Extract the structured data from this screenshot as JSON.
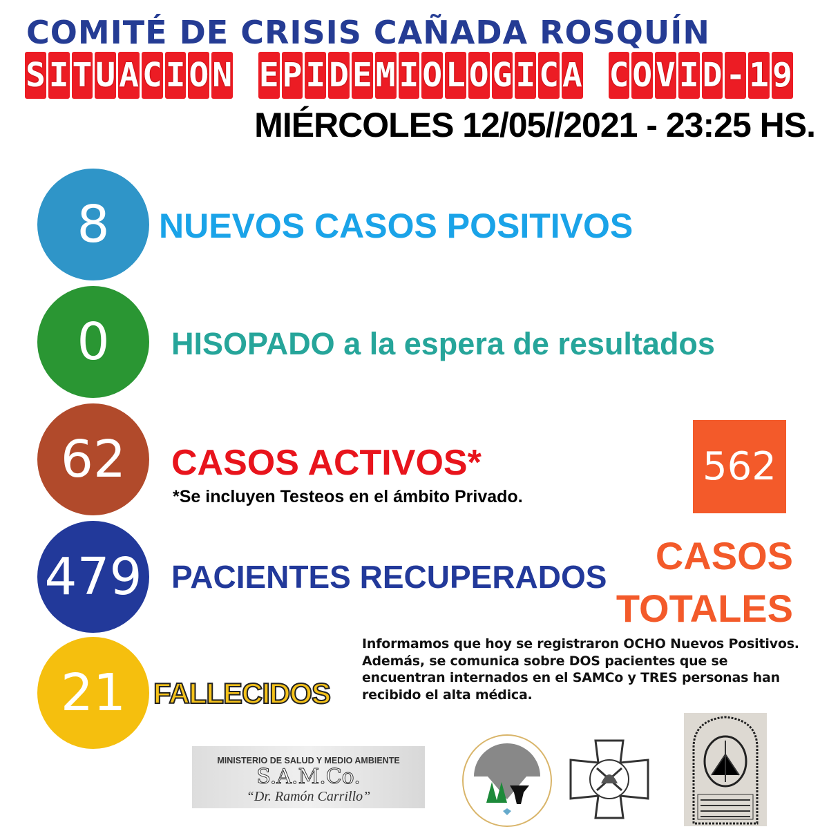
{
  "header": {
    "title": "COMITÉ DE CRISIS CAÑADA ROSQUÍN",
    "banner": "SITUACION EPIDEMIOLOGICA COVID-19",
    "date": "MIÉRCOLES 12/05//2021 - 23:25 HS."
  },
  "stats": [
    {
      "value": "8",
      "label": "NUEVOS CASOS POSITIVOS",
      "color": "#2f95c8",
      "label_color": "#1aa3e8"
    },
    {
      "value": "0",
      "label": "HISOPADO a la espera de resultados",
      "color": "#2a9633",
      "label_color": "#26a59a"
    },
    {
      "value": "62",
      "label": "CASOS ACTIVOS*",
      "note": "*Se incluyen Testeos en el ámbito Privado.",
      "color": "#b14a2b",
      "label_color": "#e8141c"
    },
    {
      "value": "479",
      "label": "PACIENTES RECUPERADOS",
      "color": "#22399a",
      "label_color": "#22399a"
    },
    {
      "value": "21",
      "label": "FALLECIDOS",
      "color": "#f5bf0e",
      "label_color": "#f5c21a"
    }
  ],
  "total": {
    "value": "562",
    "label_line1": "CASOS",
    "label_line2": "TOTALES",
    "color": "#f35a2a"
  },
  "info": "Informamos que hoy se registraron OCHO Nuevos Positivos. Además, se comunica sobre DOS pacientes que se encuentran internados en el SAMCo y TRES personas han recibido el alta médica.",
  "logos": {
    "samco": {
      "line1": "MINISTERIO DE SALUD Y MEDIO AMBIENTE",
      "line2": "S.A.M.Co.",
      "line3": "“Dr. Ramón Carrillo”"
    },
    "comuna": "COMUNA DE CAÑADA ROSQUÍN (STA. FE)",
    "bomberos": "bomberos-emblem",
    "comisaria": "COMISARIA 7ª CAÑADA ROSQUÍN UNIDAD REGIONAL XVIII DEPARTAMENTO SAN MARTÍN"
  }
}
